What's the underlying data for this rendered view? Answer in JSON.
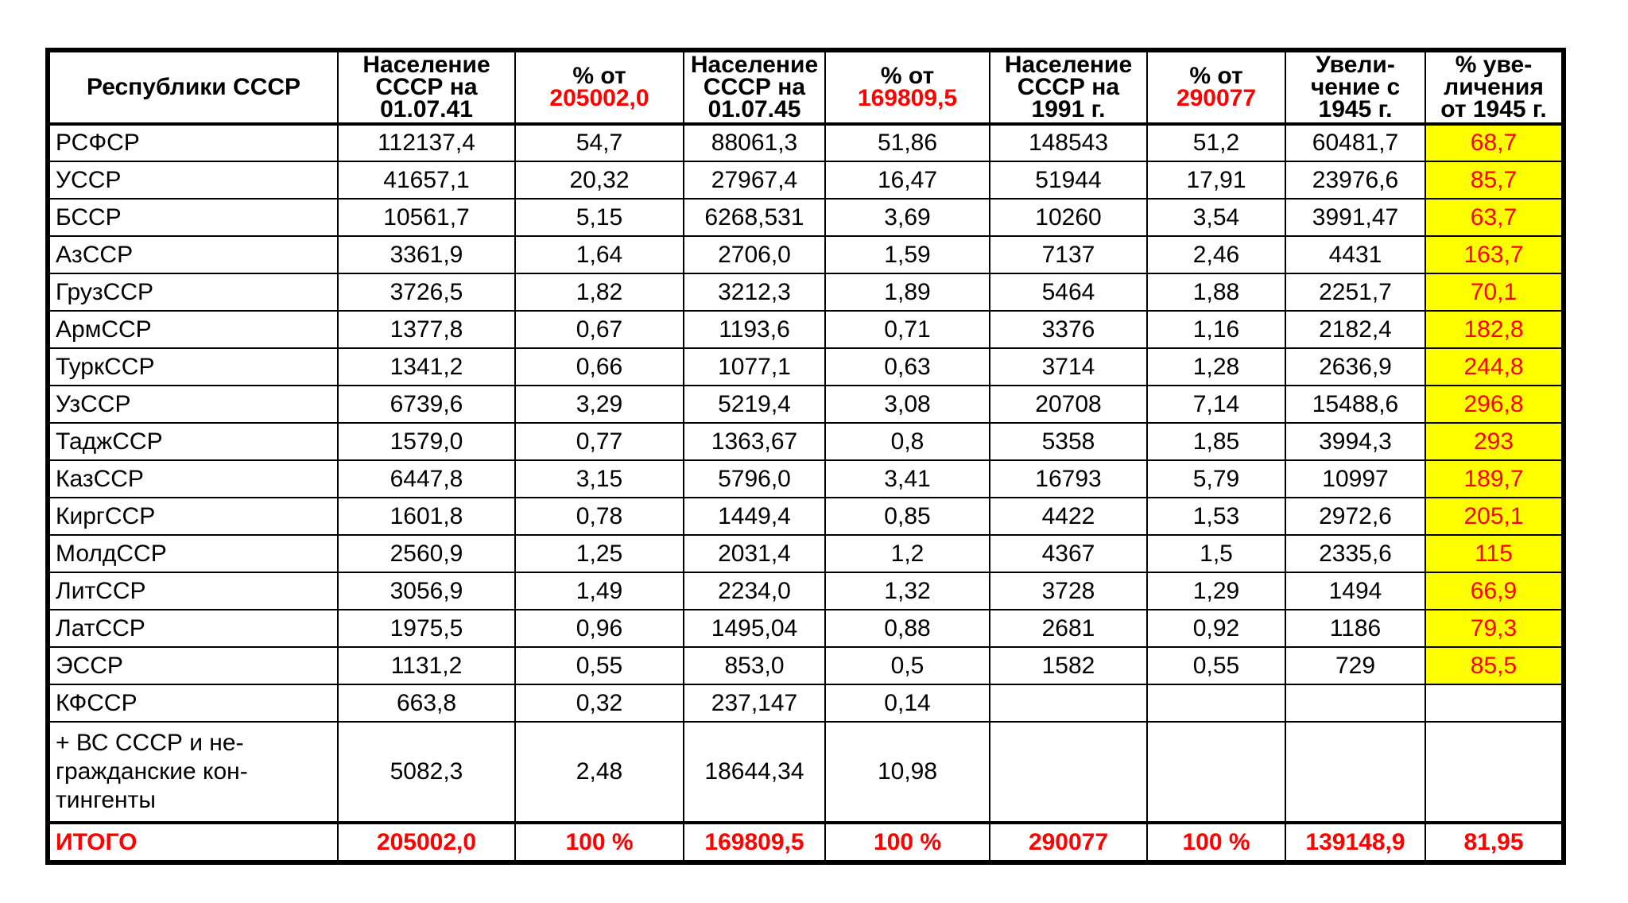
{
  "colors": {
    "text": "#000000",
    "accent_red": "#ff0000",
    "highlight_yellow": "#ffff00",
    "border": "#000000",
    "background": "#ffffff"
  },
  "table": {
    "header": {
      "cols": [
        {
          "title": "Республики СССР"
        },
        {
          "title": "Население\nСССР на\n01.07.41"
        },
        {
          "title": "% от",
          "red": "205002,0"
        },
        {
          "title": "Население\nСССР на\n01.07.45"
        },
        {
          "title": "% от",
          "red": "169809,5"
        },
        {
          "title": "Население\nСССР на\n1991 г."
        },
        {
          "title": "% от",
          "red": "290077"
        },
        {
          "title": "Увели-\nчение с\n1945 г."
        },
        {
          "title": "% уве-\nличения\nот 1945 г."
        }
      ]
    },
    "rows": [
      {
        "cells": [
          "РСФСР",
          "112137,4",
          "54,7",
          "88061,3",
          "51,86",
          "148543",
          "51,2",
          "60481,7",
          "68,7"
        ],
        "highlight_last": true,
        "total": false,
        "tall": false
      },
      {
        "cells": [
          "УССР",
          "41657,1",
          "20,32",
          "27967,4",
          "16,47",
          "51944",
          "17,91",
          "23976,6",
          "85,7"
        ],
        "highlight_last": true,
        "total": false,
        "tall": false
      },
      {
        "cells": [
          "БССР",
          "10561,7",
          "5,15",
          "6268,531",
          "3,69",
          "10260",
          "3,54",
          "3991,47",
          "63,7"
        ],
        "highlight_last": true,
        "total": false,
        "tall": false
      },
      {
        "cells": [
          "АзССР",
          "3361,9",
          "1,64",
          "2706,0",
          "1,59",
          "7137",
          "2,46",
          "4431",
          "163,7"
        ],
        "highlight_last": true,
        "total": false,
        "tall": false
      },
      {
        "cells": [
          "ГрузССР",
          "3726,5",
          "1,82",
          "3212,3",
          "1,89",
          "5464",
          "1,88",
          "2251,7",
          "70,1"
        ],
        "highlight_last": true,
        "total": false,
        "tall": false
      },
      {
        "cells": [
          "АрмССР",
          "1377,8",
          "0,67",
          "1193,6",
          "0,71",
          "3376",
          "1,16",
          "2182,4",
          "182,8"
        ],
        "highlight_last": true,
        "total": false,
        "tall": false
      },
      {
        "cells": [
          "ТуркССР",
          "1341,2",
          "0,66",
          "1077,1",
          "0,63",
          "3714",
          "1,28",
          "2636,9",
          "244,8"
        ],
        "highlight_last": true,
        "total": false,
        "tall": false
      },
      {
        "cells": [
          "УзССР",
          "6739,6",
          "3,29",
          "5219,4",
          "3,08",
          "20708",
          "7,14",
          "15488,6",
          "296,8"
        ],
        "highlight_last": true,
        "total": false,
        "tall": false
      },
      {
        "cells": [
          "ТаджССР",
          "1579,0",
          "0,77",
          "1363,67",
          "0,8",
          "5358",
          "1,85",
          "3994,3",
          "293"
        ],
        "highlight_last": true,
        "total": false,
        "tall": false
      },
      {
        "cells": [
          "КазССР",
          "6447,8",
          "3,15",
          "5796,0",
          "3,41",
          "16793",
          "5,79",
          "10997",
          "189,7"
        ],
        "highlight_last": true,
        "total": false,
        "tall": false
      },
      {
        "cells": [
          "КиргССР",
          "1601,8",
          "0,78",
          "1449,4",
          "0,85",
          "4422",
          "1,53",
          "2972,6",
          "205,1"
        ],
        "highlight_last": true,
        "total": false,
        "tall": false
      },
      {
        "cells": [
          "МолдССР",
          "2560,9",
          "1,25",
          "2031,4",
          "1,2",
          "4367",
          "1,5",
          "2335,6",
          "115"
        ],
        "highlight_last": true,
        "total": false,
        "tall": false
      },
      {
        "cells": [
          "ЛитССР",
          "3056,9",
          "1,49",
          "2234,0",
          "1,32",
          "3728",
          "1,29",
          "1494",
          "66,9"
        ],
        "highlight_last": true,
        "total": false,
        "tall": false
      },
      {
        "cells": [
          "ЛатССР",
          "1975,5",
          "0,96",
          "1495,04",
          "0,88",
          "2681",
          "0,92",
          "1186",
          "79,3"
        ],
        "highlight_last": true,
        "total": false,
        "tall": false
      },
      {
        "cells": [
          "ЭССР",
          "1131,2",
          "0,55",
          "853,0",
          "0,5",
          "1582",
          "0,55",
          "729",
          "85,5"
        ],
        "highlight_last": true,
        "total": false,
        "tall": false
      },
      {
        "cells": [
          "КФССР",
          "663,8",
          "0,32",
          "237,147",
          "0,14",
          "",
          "",
          "",
          ""
        ],
        "highlight_last": false,
        "total": false,
        "tall": false
      },
      {
        "cells": [
          "+ ВС СССР и не-\nгражданские кон-\nтингенты",
          "5082,3",
          "2,48",
          "18644,34",
          "10,98",
          "",
          "",
          "",
          ""
        ],
        "highlight_last": false,
        "total": false,
        "tall": true
      },
      {
        "cells": [
          "ИТОГО",
          "205002,0",
          "100 %",
          "169809,5",
          "100 %",
          "290077",
          "100 %",
          "139148,9",
          "81,95"
        ],
        "highlight_last": false,
        "total": true,
        "tall": false
      }
    ]
  }
}
